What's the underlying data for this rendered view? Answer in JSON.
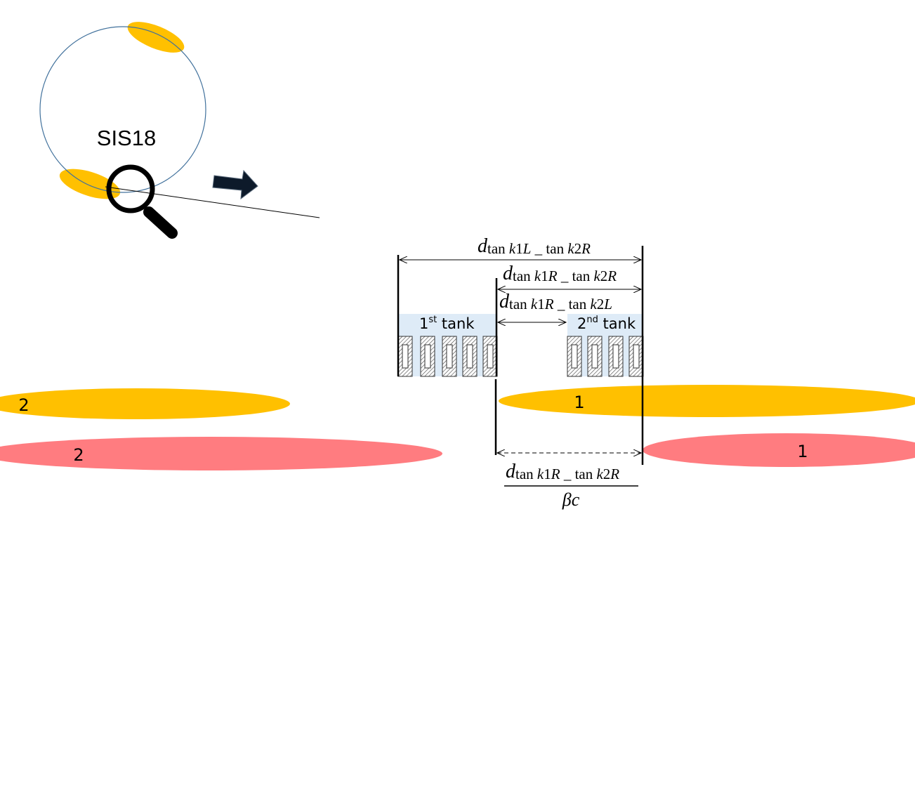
{
  "ring": {
    "label": "SIS18"
  },
  "tanks": {
    "first": {
      "number": "1",
      "superscript": "st",
      "word": " tank"
    },
    "second": {
      "number": "2",
      "superscript": "nd",
      "word": " tank"
    }
  },
  "bunches": {
    "yellow_left": "2",
    "yellow_right": "1",
    "red_left": "2",
    "red_right": "1"
  },
  "dimensions": {
    "top": {
      "d": "d",
      "p1": "tan ",
      "i1": "k",
      "p2": "1",
      "i2": "L",
      "p3": " _ tan ",
      "i3": "k",
      "p4": "2",
      "i4": "R"
    },
    "middle": {
      "d": "d",
      "p1": "tan ",
      "i1": "k",
      "p2": "1",
      "i2": "R",
      "p3": " _ tan ",
      "i3": "k",
      "p4": "2",
      "i4": "R"
    },
    "gap": {
      "d": "d",
      "p1": "tan ",
      "i1": "k",
      "p2": "1",
      "i2": "R",
      "p3": " _ tan ",
      "i3": "k",
      "p4": "2",
      "i4": "L"
    },
    "fraction_numerator": {
      "d": "d",
      "p1": "tan ",
      "i1": "k",
      "p2": "1",
      "i2": "R",
      "p3": " _ tan ",
      "i3": "k",
      "p4": "2",
      "i4": "R"
    },
    "fraction_denominator": "βc"
  },
  "colors": {
    "yellow_bunch": "#FFC000",
    "red_bunch": "#FF7C80",
    "ring_stroke": "#41719C",
    "tank_fill": "#DEEBF7",
    "arrow_fill": "#0D1A2A"
  },
  "icons": {
    "magnifier": "magnifier-icon",
    "arrow": "right-arrow-icon"
  }
}
